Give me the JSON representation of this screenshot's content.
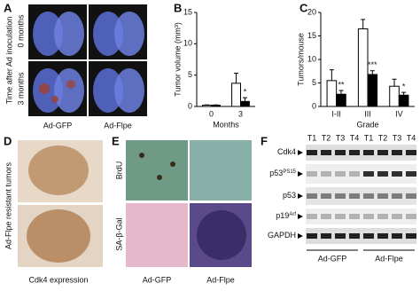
{
  "panels": {
    "a": {
      "label": "A",
      "side": "Time after Ad inoculation",
      "rows": [
        "0 months",
        "3 months"
      ],
      "cols": [
        "Ad-GFP",
        "Ad-Flpe"
      ]
    },
    "b": {
      "label": "B"
    },
    "c": {
      "label": "C"
    },
    "d": {
      "label": "D",
      "side": "Ad-Flpe resistant tumors",
      "bottom": "Cdk4 expression"
    },
    "e": {
      "label": "E",
      "rows": [
        "BrdU",
        "SA-β-Gal"
      ],
      "cols": [
        "Ad-GFP",
        "Ad-Flpe"
      ]
    },
    "f": {
      "label": "F",
      "lanes": [
        "T1",
        "T2",
        "T3",
        "T4",
        "T1",
        "T2",
        "T3",
        "T4"
      ],
      "rows": [
        {
          "base": "Cdk4"
        },
        {
          "base": "p53",
          "sup": "PS15"
        },
        {
          "base": "p53"
        },
        {
          "base": "p19",
          "sup": "Arf"
        },
        {
          "base": "GAPDH"
        }
      ],
      "groups": [
        "Ad-GFP",
        "Ad-Flpe"
      ]
    }
  },
  "chart_data": [
    {
      "type": "bar",
      "ylabel": "Tumor volume (mm³)",
      "xlabel": "Months",
      "categories": [
        "0",
        "3"
      ],
      "series": [
        {
          "color": "#ffffff",
          "values": [
            0.2,
            3.7
          ],
          "errors": [
            0.05,
            1.6
          ]
        },
        {
          "color": "#000000",
          "values": [
            0.2,
            0.8
          ],
          "errors": [
            0.05,
            0.6
          ]
        }
      ],
      "ylim": [
        0,
        15
      ],
      "yticks": [
        0,
        5,
        10,
        15
      ],
      "annotations": [
        {
          "text": "*",
          "category": 1
        }
      ]
    },
    {
      "type": "bar",
      "ylabel": "Tumors/mouse",
      "xlabel": "Grade",
      "categories": [
        "I-II",
        "III",
        "IV"
      ],
      "series": [
        {
          "color": "#ffffff",
          "values": [
            5.5,
            16.5,
            4.3
          ],
          "errors": [
            2.3,
            2.0,
            1.5
          ]
        },
        {
          "color": "#000000",
          "values": [
            2.6,
            6.8,
            2.4
          ],
          "errors": [
            0.8,
            0.8,
            0.6
          ]
        }
      ],
      "ylim": [
        0,
        20
      ],
      "yticks": [
        0,
        5,
        10,
        15,
        20
      ],
      "annotations": [
        {
          "text": "**",
          "category": 0
        },
        {
          "text": "***",
          "category": 1
        },
        {
          "text": "*",
          "category": 2
        }
      ]
    }
  ]
}
